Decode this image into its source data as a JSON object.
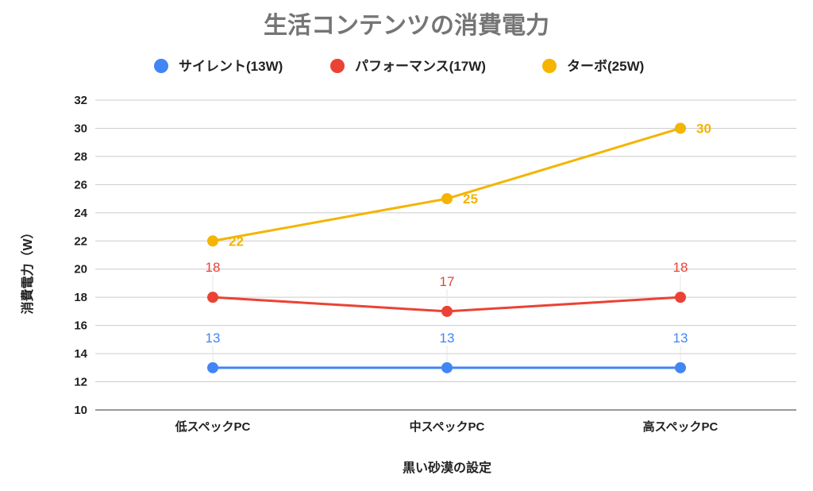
{
  "chart_data": {
    "type": "line",
    "title": "生活コンテンツの消費電力",
    "xlabel": "黒い砂漠の設定",
    "ylabel": "消費電力（W）",
    "categories": [
      "低スペックPC",
      "中スペックPC",
      "高スペックPC"
    ],
    "ylim": [
      10,
      32
    ],
    "yticks": [
      10,
      12,
      14,
      16,
      18,
      20,
      22,
      24,
      26,
      28,
      30,
      32
    ],
    "grid": true,
    "legend_position": "top",
    "series": [
      {
        "name": "サイレント(13W)",
        "color": "#4285F4",
        "values": [
          13,
          13,
          13
        ],
        "label_position": "above"
      },
      {
        "name": "パフォーマンス(17W)",
        "color": "#EA4335",
        "values": [
          18,
          17,
          18
        ],
        "label_position": "above"
      },
      {
        "name": "ターボ(25W)",
        "color": "#F4B400",
        "values": [
          22,
          25,
          30
        ],
        "label_position": "right"
      }
    ]
  }
}
